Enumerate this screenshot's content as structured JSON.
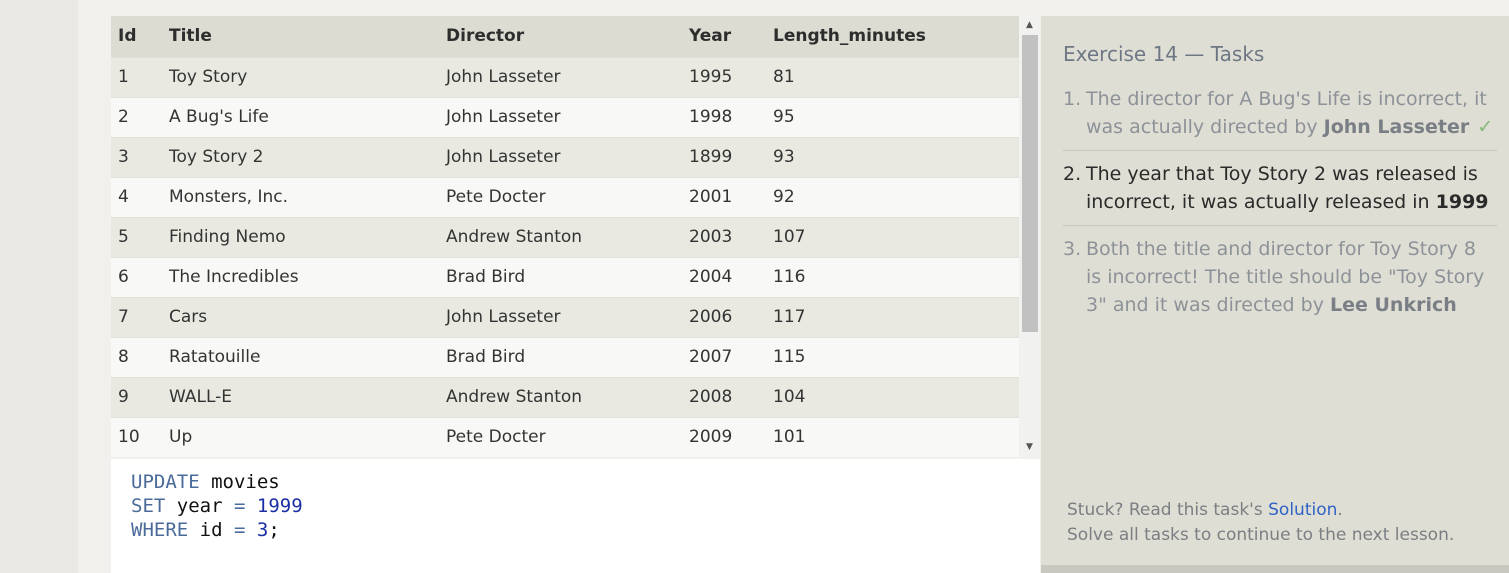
{
  "table": {
    "columns": [
      "Id",
      "Title",
      "Director",
      "Year",
      "Length_minutes"
    ],
    "rows": [
      [
        "1",
        "Toy Story",
        "John Lasseter",
        "1995",
        "81"
      ],
      [
        "2",
        "A Bug's Life",
        "John Lasseter",
        "1998",
        "95"
      ],
      [
        "3",
        "Toy Story 2",
        "John Lasseter",
        "1899",
        "93"
      ],
      [
        "4",
        "Monsters, Inc.",
        "Pete Docter",
        "2001",
        "92"
      ],
      [
        "5",
        "Finding Nemo",
        "Andrew Stanton",
        "2003",
        "107"
      ],
      [
        "6",
        "The Incredibles",
        "Brad Bird",
        "2004",
        "116"
      ],
      [
        "7",
        "Cars",
        "John Lasseter",
        "2006",
        "117"
      ],
      [
        "8",
        "Ratatouille",
        "Brad Bird",
        "2007",
        "115"
      ],
      [
        "9",
        "WALL-E",
        "Andrew Stanton",
        "2008",
        "104"
      ],
      [
        "10",
        "Up",
        "Pete Docter",
        "2009",
        "101"
      ]
    ]
  },
  "editor": {
    "line1": {
      "kw": "UPDATE",
      "rest": " movies"
    },
    "line2": {
      "kw": "SET",
      "mid": " year ",
      "op": "=",
      "num": "1999"
    },
    "line3": {
      "kw": "WHERE",
      "mid": " id ",
      "op": "=",
      "num": "3",
      "end": ";"
    }
  },
  "side": {
    "title": "Exercise 14 — Tasks",
    "tasks": [
      {
        "num": "1.",
        "text": "The director for A Bug's Life is incorrect, it was actually directed by ",
        "bold": "John Lasseter",
        "check": "✓"
      },
      {
        "num": "2.",
        "text": "The year that Toy Story 2 was released is incorrect, it was actually released in ",
        "bold": "1999"
      },
      {
        "num": "3.",
        "text": "Both the title and director for Toy Story 8 is incorrect! The title should be \"Toy Story 3\" and it was directed by ",
        "bold": "Lee Unkrich"
      }
    ],
    "stuck_prefix": "Stuck? Read this task's ",
    "solution_link": "Solution",
    "stuck_suffix": ".",
    "continue_text": "Solve all tasks to continue to the next lesson."
  },
  "scrollbar": {
    "up": "▲",
    "down": "▼"
  }
}
